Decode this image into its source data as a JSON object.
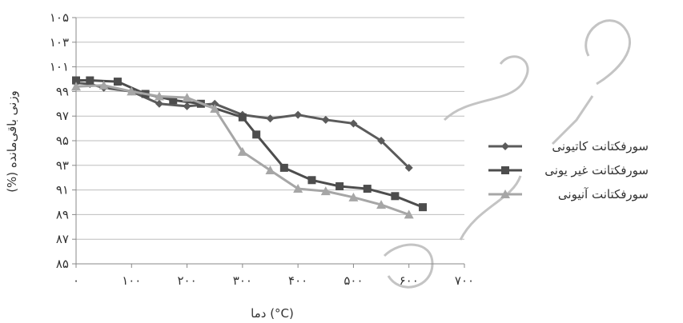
{
  "chart_data": {
    "type": "line",
    "xlabel": "دما (°C)",
    "ylabel": "(%) وزنی باقی‌مانده",
    "xlim": [
      0,
      700
    ],
    "ylim": [
      85,
      105
    ],
    "x_tick_labels": [
      "۰",
      "۱۰۰",
      "۲۰۰",
      "۳۰۰",
      "۴۰۰",
      "۵۰۰",
      "۶۰۰",
      "۷۰۰"
    ],
    "y_tick_labels": [
      "۸۵",
      "۸۷",
      "۸۹",
      "۹۱",
      "۹۳",
      "۹۵",
      "۹۷",
      "۹۹",
      "۱۰۱",
      "۱۰۳",
      "۱۰۵"
    ],
    "grid": true,
    "legend_position": "right",
    "series": [
      {
        "name": "سورفکتانت کاتیونی",
        "color": "#5b5b5b",
        "marker": "diamond",
        "x": [
          0,
          25,
          50,
          100,
          150,
          200,
          250,
          300,
          350,
          400,
          450,
          500,
          550,
          600
        ],
        "y": [
          99.7,
          99.6,
          99.3,
          99.0,
          98.0,
          97.8,
          98.0,
          97.1,
          96.8,
          97.1,
          96.7,
          96.4,
          95.0,
          92.8
        ]
      },
      {
        "name": "سورفکتانت غیر یونی",
        "color": "#4d4d4d",
        "marker": "square",
        "x": [
          0,
          25,
          75,
          125,
          175,
          225,
          300,
          325,
          375,
          425,
          475,
          525,
          575,
          625
        ],
        "y": [
          99.9,
          99.9,
          99.8,
          98.8,
          98.3,
          98.0,
          96.9,
          95.5,
          92.8,
          91.8,
          91.3,
          91.1,
          90.5,
          89.6
        ]
      },
      {
        "name": "سورفکتانت آنیونی",
        "color": "#a6a6a6",
        "marker": "triangle",
        "x": [
          0,
          50,
          100,
          150,
          200,
          250,
          300,
          350,
          400,
          450,
          500,
          550,
          600
        ],
        "y": [
          99.4,
          99.5,
          99.0,
          98.6,
          98.5,
          97.6,
          94.1,
          92.6,
          91.1,
          90.9,
          90.4,
          89.8,
          89.0
        ]
      }
    ]
  }
}
